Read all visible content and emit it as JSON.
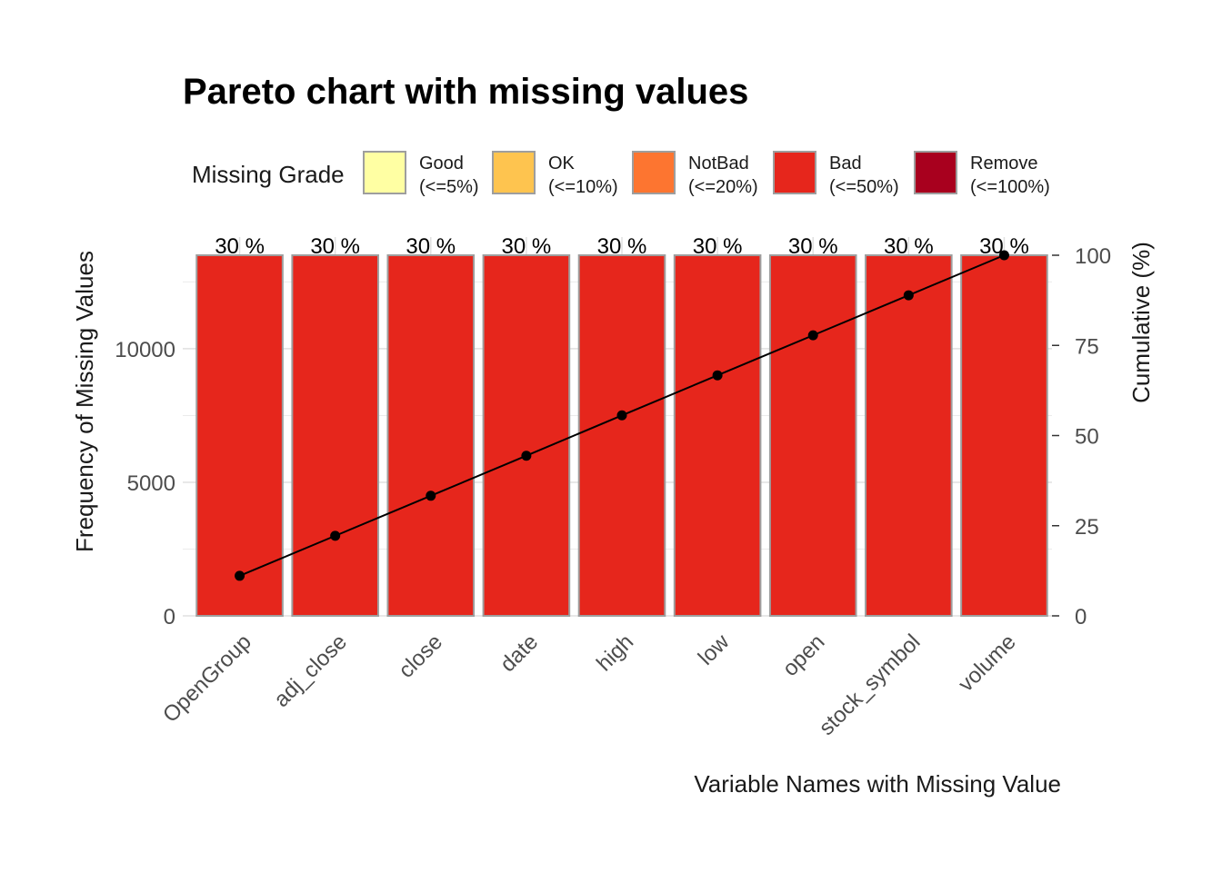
{
  "chart_data": {
    "type": "bar",
    "title": "Pareto chart with missing values",
    "xlabel": "Variable Names with Missing Value",
    "ylabel": "Frequency of Missing Values",
    "y2label": "Cumulative (%)",
    "categories": [
      "OpenGroup",
      "adj_close",
      "close",
      "date",
      "high",
      "low",
      "open",
      "stock_symbol",
      "volume"
    ],
    "values": [
      13500,
      13500,
      13500,
      13500,
      13500,
      13500,
      13500,
      13500,
      13500
    ],
    "bar_labels": [
      "30 %",
      "30 %",
      "30 %",
      "30 %",
      "30 %",
      "30 %",
      "30 %",
      "30 %",
      "30 %"
    ],
    "bar_grade": [
      "Bad",
      "Bad",
      "Bad",
      "Bad",
      "Bad",
      "Bad",
      "Bad",
      "Bad",
      "Bad"
    ],
    "cumulative": [
      11.1,
      22.2,
      33.3,
      44.4,
      55.6,
      66.7,
      77.8,
      88.9,
      100
    ],
    "ylim": [
      0,
      13500
    ],
    "y_ticks": [
      0,
      5000,
      10000
    ],
    "y2lim": [
      0,
      100
    ],
    "y2_ticks": [
      0,
      25,
      50,
      75,
      100
    ],
    "grid": true,
    "legend": {
      "title": "Missing Grade",
      "position": "top",
      "items": [
        {
          "name": "Good",
          "range": "(<=5%)",
          "color": "#FFFFA3"
        },
        {
          "name": "OK",
          "range": "(<=10%)",
          "color": "#FEC44F"
        },
        {
          "name": "NotBad",
          "range": "(<=20%)",
          "color": "#FD7530"
        },
        {
          "name": "Bad",
          "range": "(<=50%)",
          "color": "#E6261C"
        },
        {
          "name": "Remove",
          "range": "(<=100%)",
          "color": "#A8001E"
        }
      ]
    },
    "colors": {
      "bar": "#E6261C",
      "bar_border": "#9e9e9e",
      "line": "#000000",
      "grid": "#e0e0e0"
    }
  }
}
